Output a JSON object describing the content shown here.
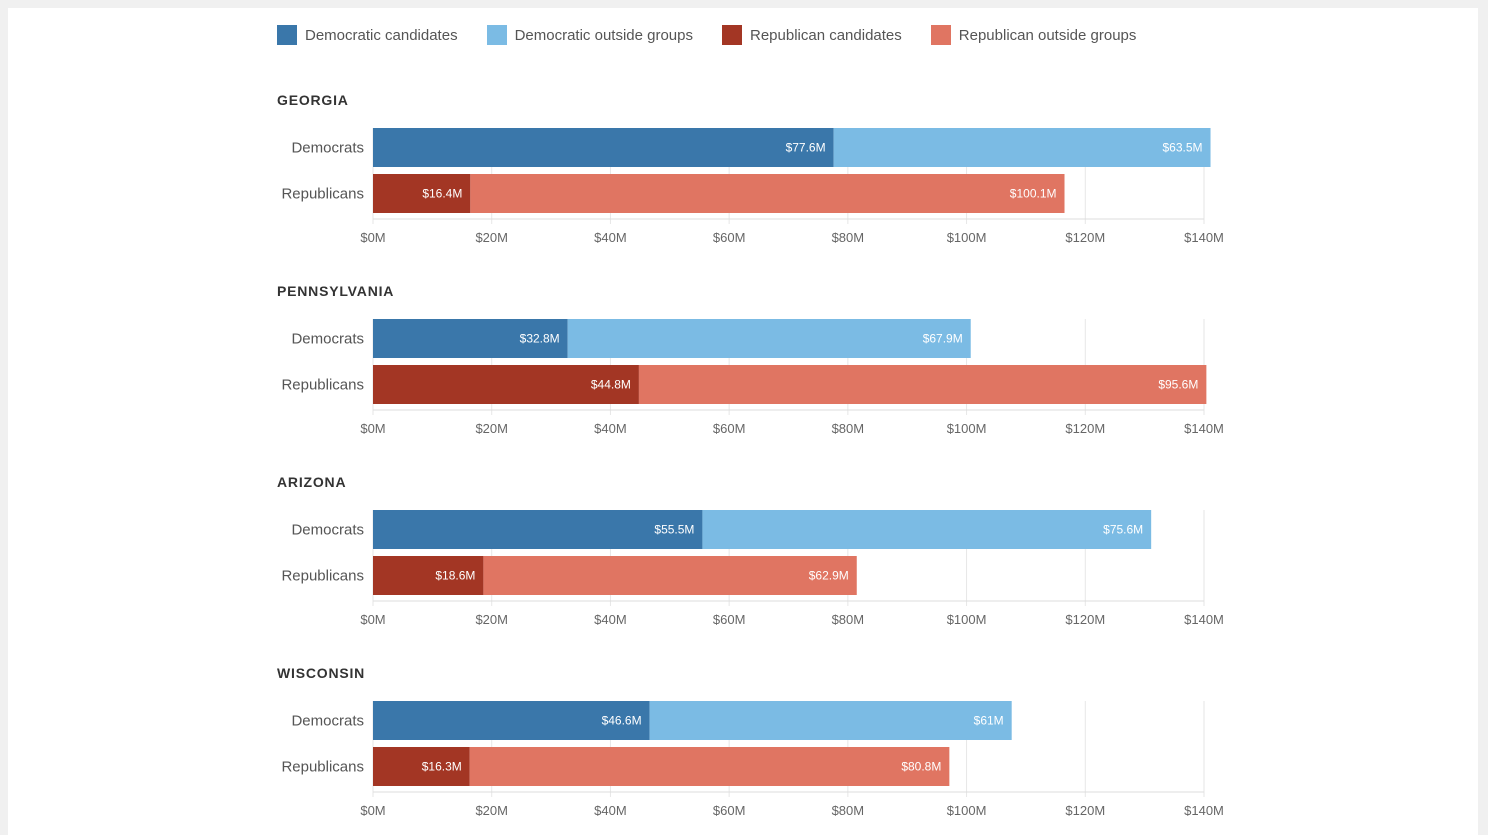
{
  "colors": {
    "dem_candidates": "#3a77aa",
    "dem_outside": "#7bbbe4",
    "rep_candidates": "#a33624",
    "rep_outside": "#e07562",
    "gridline": "#e6e6e6",
    "axis": "#dddddd"
  },
  "legend": [
    {
      "label": "Democratic candidates",
      "color": "#3a77aa"
    },
    {
      "label": "Democratic outside groups",
      "color": "#7bbbe4"
    },
    {
      "label": "Republican candidates",
      "color": "#a33624"
    },
    {
      "label": "Republican outside groups",
      "color": "#e07562"
    }
  ],
  "chart_data": {
    "type": "bar",
    "orientation": "horizontal",
    "stacked": true,
    "units": "millions of USD",
    "xlim": [
      0,
      140
    ],
    "x_ticks": [
      0,
      20,
      40,
      60,
      80,
      100,
      120,
      140
    ],
    "x_tick_labels": [
      "$0M",
      "$20M",
      "$40M",
      "$60M",
      "$80M",
      "$100M",
      "$120M",
      "$140M"
    ],
    "grid": true,
    "legend_position": "top",
    "panels": [
      {
        "title": "GEORGIA",
        "rows": [
          {
            "label": "Democrats",
            "segments": [
              {
                "series": "Democratic candidates",
                "value": 77.6,
                "label": "$77.6M"
              },
              {
                "series": "Democratic outside groups",
                "value": 63.5,
                "label": "$63.5M"
              }
            ]
          },
          {
            "label": "Republicans",
            "segments": [
              {
                "series": "Republican candidates",
                "value": 16.4,
                "label": "$16.4M"
              },
              {
                "series": "Republican outside groups",
                "value": 100.1,
                "label": "$100.1M"
              }
            ]
          }
        ]
      },
      {
        "title": "PENNSYLVANIA",
        "rows": [
          {
            "label": "Democrats",
            "segments": [
              {
                "series": "Democratic candidates",
                "value": 32.8,
                "label": "$32.8M"
              },
              {
                "series": "Democratic outside groups",
                "value": 67.9,
                "label": "$67.9M"
              }
            ]
          },
          {
            "label": "Republicans",
            "segments": [
              {
                "series": "Republican candidates",
                "value": 44.8,
                "label": "$44.8M"
              },
              {
                "series": "Republican outside groups",
                "value": 95.6,
                "label": "$95.6M"
              }
            ]
          }
        ]
      },
      {
        "title": "ARIZONA",
        "rows": [
          {
            "label": "Democrats",
            "segments": [
              {
                "series": "Democratic candidates",
                "value": 55.5,
                "label": "$55.5M"
              },
              {
                "series": "Democratic outside groups",
                "value": 75.6,
                "label": "$75.6M"
              }
            ]
          },
          {
            "label": "Republicans",
            "segments": [
              {
                "series": "Republican candidates",
                "value": 18.6,
                "label": "$18.6M"
              },
              {
                "series": "Republican outside groups",
                "value": 62.9,
                "label": "$62.9M"
              }
            ]
          }
        ]
      },
      {
        "title": "WISCONSIN",
        "rows": [
          {
            "label": "Democrats",
            "segments": [
              {
                "series": "Democratic candidates",
                "value": 46.6,
                "label": "$46.6M"
              },
              {
                "series": "Democratic outside groups",
                "value": 61,
                "label": "$61M"
              }
            ]
          },
          {
            "label": "Republicans",
            "segments": [
              {
                "series": "Republican candidates",
                "value": 16.3,
                "label": "$16.3M"
              },
              {
                "series": "Republican outside groups",
                "value": 80.8,
                "label": "$80.8M"
              }
            ]
          }
        ]
      }
    ]
  }
}
